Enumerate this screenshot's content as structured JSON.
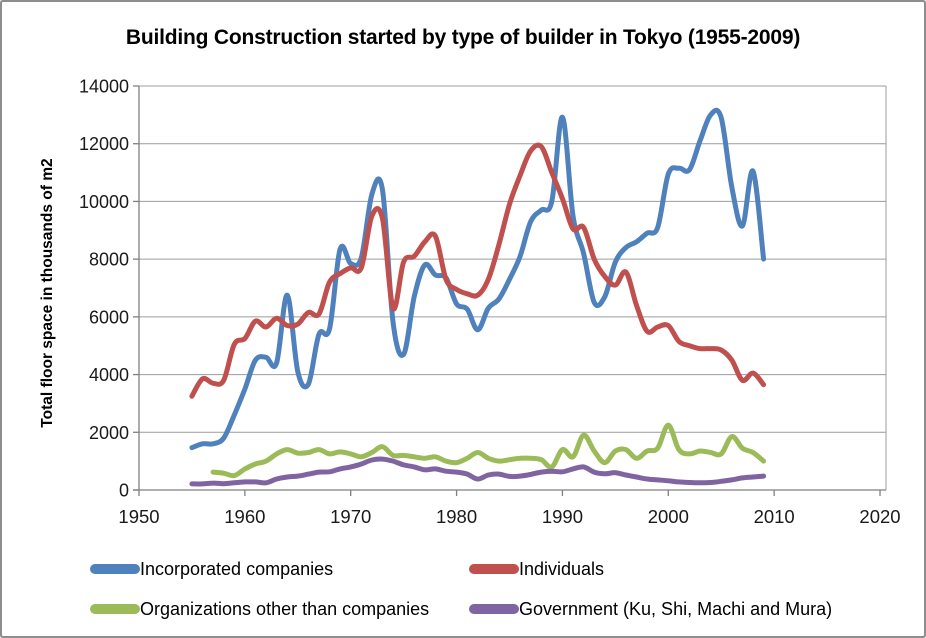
{
  "window": {
    "background": "#ffffff",
    "border_color": "#8d8d8d"
  },
  "chart_data": {
    "type": "line",
    "title": "Building Construction started by type of builder in Tokyo (1955-2009)",
    "xlabel": "",
    "ylabel": "Total floor space in thousands of m2",
    "xlim": [
      1950,
      2020
    ],
    "ylim": [
      0,
      14000
    ],
    "x_ticks": [
      1950,
      1960,
      1970,
      1980,
      1990,
      2000,
      2010,
      2020
    ],
    "y_ticks": [
      0,
      2000,
      4000,
      6000,
      8000,
      10000,
      12000,
      14000
    ],
    "grid": true,
    "smooth_lines": true,
    "legend_position": "bottom",
    "axis_color": "#7f7f7f",
    "grid_color": "#9c9c9c",
    "x_start_year": 1955,
    "x_end_year": 2009,
    "series": [
      {
        "name": "Incorporated companies",
        "color": "#4F81BD",
        "values": [
          1470,
          1600,
          1600,
          1800,
          2600,
          3500,
          4500,
          4600,
          4400,
          6750,
          4100,
          3670,
          5400,
          5580,
          8350,
          7850,
          8050,
          10250,
          10400,
          5800,
          4700,
          6700,
          7800,
          7450,
          7350,
          6450,
          6270,
          5550,
          6300,
          6620,
          7300,
          8100,
          9300,
          9700,
          10000,
          12920,
          9500,
          8200,
          6500,
          6700,
          7900,
          8400,
          8600,
          8900,
          9100,
          10950,
          11150,
          11100,
          12100,
          13000,
          12900,
          10500,
          9150,
          11050,
          8000
        ]
      },
      {
        "name": "Individuals",
        "color": "#C0504D",
        "values": [
          3250,
          3850,
          3700,
          3800,
          5050,
          5250,
          5850,
          5650,
          5950,
          5700,
          5750,
          6150,
          6100,
          7200,
          7500,
          7700,
          7700,
          9500,
          9400,
          6300,
          7900,
          8100,
          8600,
          8800,
          7300,
          6950,
          6800,
          6750,
          7300,
          8500,
          9900,
          10900,
          11750,
          11900,
          11000,
          10100,
          9050,
          9100,
          8000,
          7400,
          7100,
          7550,
          6400,
          5500,
          5650,
          5700,
          5150,
          5000,
          4900,
          4900,
          4850,
          4500,
          3800,
          4050,
          3650
        ]
      },
      {
        "name": "Organizations other than companies",
        "color": "#9BBB59",
        "values": [
          null,
          null,
          620,
          580,
          500,
          730,
          900,
          1000,
          1250,
          1400,
          1280,
          1300,
          1400,
          1250,
          1320,
          1250,
          1150,
          1300,
          1500,
          1200,
          1200,
          1150,
          1100,
          1150,
          1000,
          950,
          1100,
          1300,
          1100,
          1000,
          1050,
          1100,
          1100,
          1050,
          800,
          1400,
          1150,
          1900,
          1350,
          950,
          1350,
          1400,
          1100,
          1350,
          1450,
          2250,
          1400,
          1250,
          1350,
          1300,
          1250,
          1850,
          1450,
          1300,
          1000
        ]
      },
      {
        "name": "Government (Ku, Shi, Machi and Mura)",
        "color": "#8064A2",
        "values": [
          210,
          210,
          240,
          220,
          250,
          280,
          280,
          250,
          380,
          450,
          480,
          550,
          620,
          630,
          730,
          800,
          900,
          1040,
          1070,
          1000,
          870,
          800,
          700,
          730,
          650,
          620,
          550,
          380,
          520,
          550,
          470,
          480,
          540,
          620,
          650,
          630,
          730,
          800,
          620,
          560,
          600,
          520,
          450,
          380,
          350,
          320,
          280,
          260,
          250,
          260,
          300,
          350,
          420,
          450,
          480
        ]
      }
    ]
  }
}
